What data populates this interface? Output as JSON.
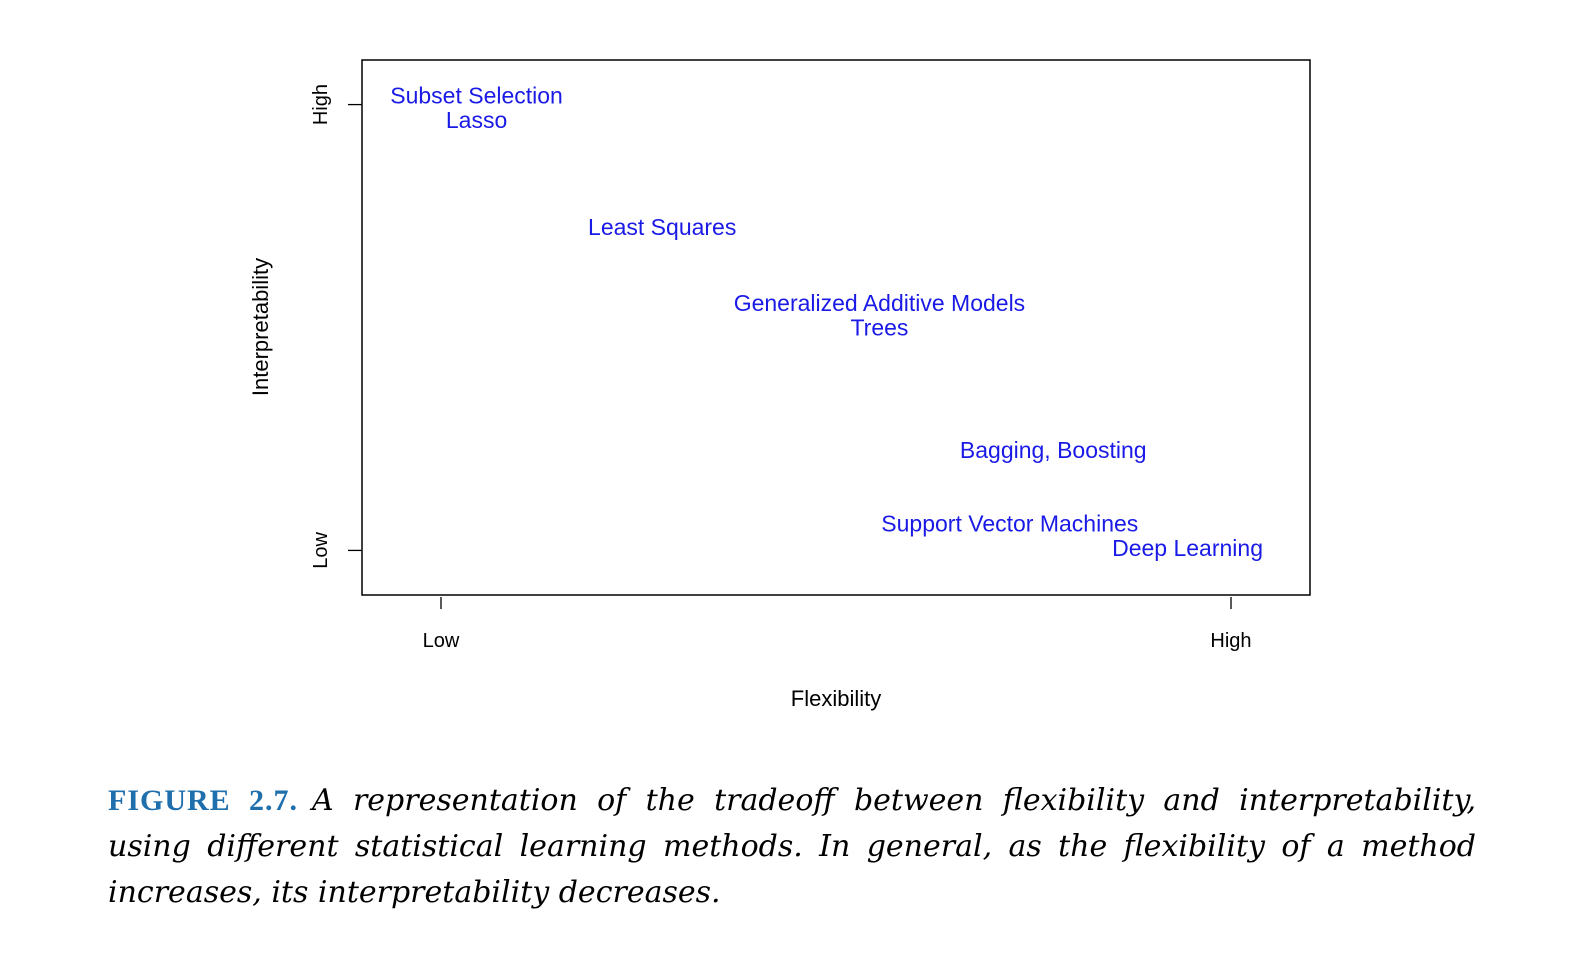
{
  "chart_data": {
    "type": "scatter",
    "title": "",
    "xlabel": "Flexibility",
    "ylabel": "Interpretability",
    "x_tick_labels": [
      {
        "value": 0,
        "label": "Low"
      },
      {
        "value": 1,
        "label": "High"
      }
    ],
    "y_tick_labels": [
      {
        "value": 0,
        "label": "Low"
      },
      {
        "value": 1,
        "label": "High"
      }
    ],
    "xlim": [
      -0.1,
      1.1
    ],
    "ylim": [
      -0.1,
      1.1
    ],
    "label_color": "#1a1ae6",
    "points": [
      {
        "label": "Subset Selection",
        "x": 0.045,
        "y": 1.02
      },
      {
        "label": "Lasso",
        "x": 0.045,
        "y": 0.965
      },
      {
        "label": "Least Squares",
        "x": 0.28,
        "y": 0.725
      },
      {
        "label": "Generalized Additive Models",
        "x": 0.555,
        "y": 0.555
      },
      {
        "label": "Trees",
        "x": 0.555,
        "y": 0.5
      },
      {
        "label": "Bagging, Boosting",
        "x": 0.775,
        "y": 0.225
      },
      {
        "label": "Support Vector Machines",
        "x": 0.72,
        "y": 0.06
      },
      {
        "label": "Deep Learning",
        "x": 0.945,
        "y": 0.005
      }
    ],
    "grid": false,
    "legend": "none"
  },
  "caption": {
    "label": "FIGURE 2.7.",
    "text": "A representation of the tradeoff between flexibility and interpretability, using different statistical learning methods. In general, as the flexibility of a method increases, its interpretability decreases.",
    "label_color": "#1f6fad"
  }
}
